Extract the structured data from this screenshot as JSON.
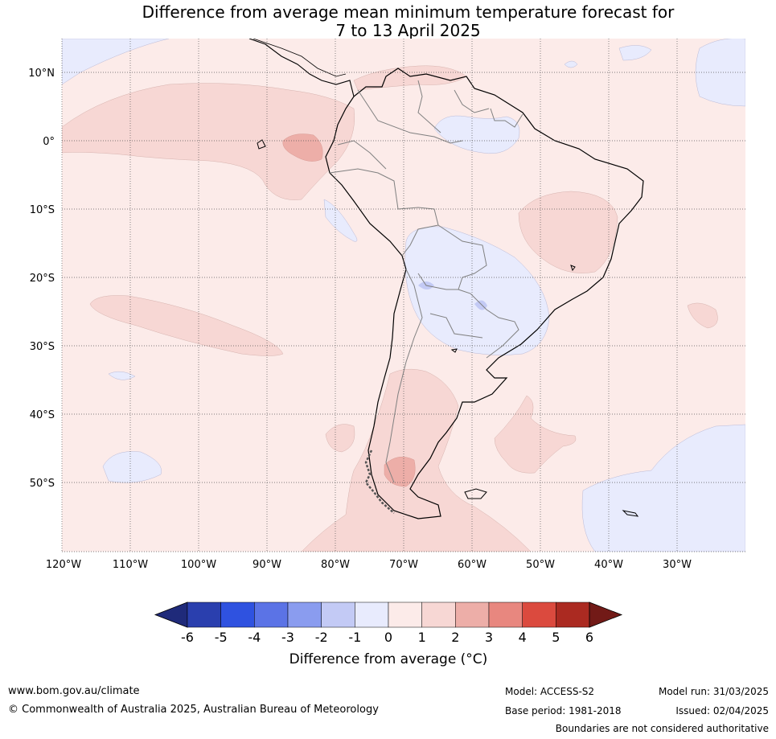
{
  "title": {
    "line1": "Difference from average mean minimum temperature forecast for",
    "line2": "7 to 13 April 2025"
  },
  "map": {
    "lon_labels": [
      "120°W",
      "110°W",
      "100°W",
      "90°W",
      "80°W",
      "70°W",
      "60°W",
      "50°W",
      "40°W",
      "30°W"
    ],
    "lat_labels": [
      "10°N",
      "0°",
      "10°S",
      "20°S",
      "30°S",
      "40°S",
      "50°S"
    ],
    "gridlines": "dotted",
    "colors": {
      "land_outline": "#000000",
      "border": "#808080"
    }
  },
  "colorbar": {
    "ticks": [
      "-6",
      "-5",
      "-4",
      "-3",
      "-2",
      "-1",
      "0",
      "1",
      "2",
      "3",
      "4",
      "5",
      "6"
    ],
    "colors": [
      "#1f2a7a",
      "#2a3fae",
      "#2f52e0",
      "#5b73e6",
      "#8a9cef",
      "#c3caf5",
      "#e8ebfd",
      "#fcebe9",
      "#f7d7d4",
      "#edaea8",
      "#e8877f",
      "#db4a3e",
      "#ab2a21",
      "#721a17"
    ],
    "label": "Difference from average (°C)"
  },
  "footer": {
    "url": "www.bom.gov.au/climate",
    "copyright": "© Commonwealth of Australia 2025, Australian Bureau of Meteorology",
    "model": "Model: ACCESS-S2",
    "base_period": "Base period: 1981-2018",
    "model_run": "Model run: 31/03/2025",
    "issued": "Issued: 02/04/2025",
    "disclaimer": "Boundaries are not considered authoritative"
  }
}
